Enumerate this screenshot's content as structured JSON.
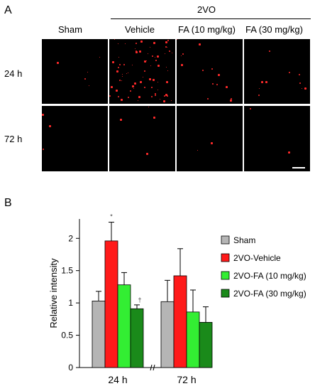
{
  "panel_a": {
    "label": "A",
    "group_header": "2VO",
    "columns": [
      "Sham",
      "Vehicle",
      "FA (10 mg/kg)",
      "FA (30 mg/kg)"
    ],
    "rows": [
      "24 h",
      "72 h"
    ],
    "signal_color": "#ff2a2a"
  },
  "panel_b": {
    "label": "B"
  },
  "chart_data": {
    "type": "bar",
    "categories": [
      "24 h",
      "72 h"
    ],
    "ylabel": "Relative intensity",
    "xlabel": "",
    "ylim": [
      0,
      2.3
    ],
    "yticks": [
      "0",
      "0.5",
      "1",
      "1.5",
      "2"
    ],
    "legend_position": "right",
    "series": [
      {
        "name": "Sham",
        "color": "#b5b5b5",
        "values": [
          1.03,
          1.02
        ],
        "errors": [
          0.15,
          0.33
        ]
      },
      {
        "name": "2VO-Vehicle",
        "color": "#ff1a1a",
        "values": [
          1.96,
          1.42
        ],
        "errors": [
          0.29,
          0.42
        ]
      },
      {
        "name": "2VO-FA (10 mg/kg)",
        "color": "#33ee33",
        "values": [
          1.28,
          0.86
        ],
        "errors": [
          0.19,
          0.34
        ]
      },
      {
        "name": "2VO-FA (30 mg/kg)",
        "color": "#1a8a1a",
        "values": [
          0.91,
          0.7
        ],
        "errors": [
          0.06,
          0.24
        ]
      }
    ],
    "annotations": [
      {
        "text": "*",
        "category": "24 h",
        "series": "2VO-Vehicle"
      },
      {
        "text": "†",
        "category": "24 h",
        "series": "2VO-FA (30 mg/kg)"
      }
    ]
  }
}
